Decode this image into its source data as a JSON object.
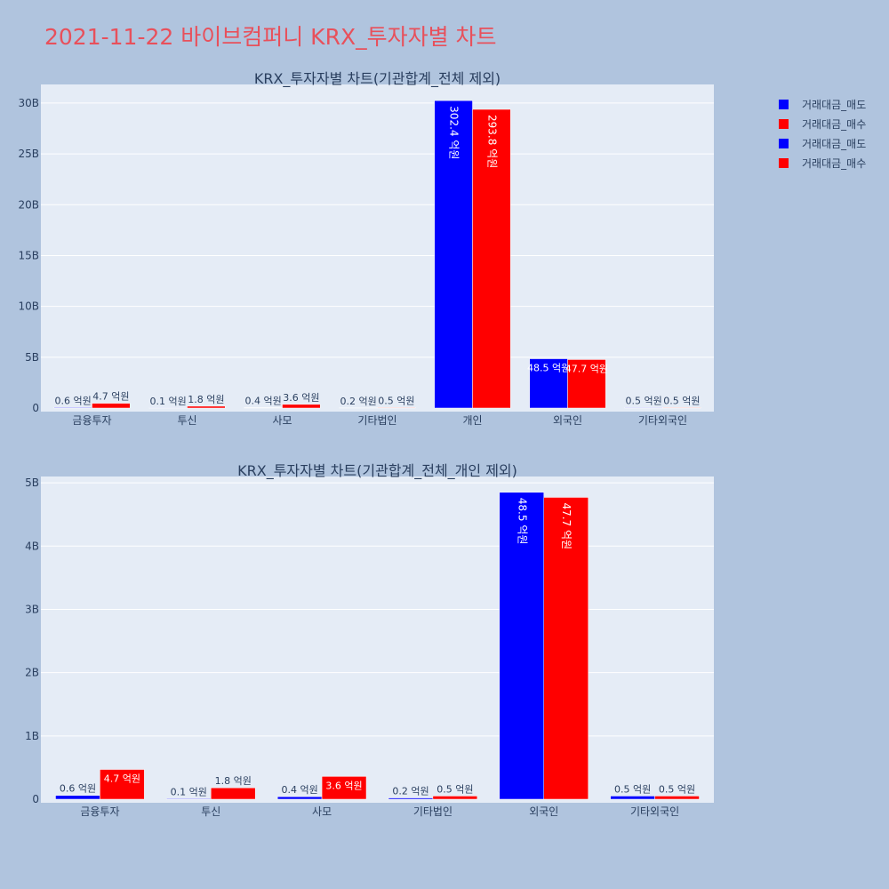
{
  "page": {
    "title": "2021-11-22 바이브컴퍼니 KRX_투자자별 차트"
  },
  "colors": {
    "background": "#b0c4de",
    "plot_bg": "#e5ecf6",
    "sell": "#0000ff",
    "buy": "#ff0000",
    "title": "#e8505b",
    "text": "#2a3f5f"
  },
  "legend": [
    {
      "label": "거래대금_매도",
      "color": "#0000ff"
    },
    {
      "label": "거래대금_매수",
      "color": "#ff0000"
    },
    {
      "label": "거래대금_매도",
      "color": "#0000ff"
    },
    {
      "label": "거래대금_매수",
      "color": "#ff0000"
    }
  ],
  "chart_data": [
    {
      "type": "bar",
      "title": "KRX_투자자별 차트(기관합계_전체 제외)",
      "categories": [
        "금융투자",
        "투신",
        "사모",
        "기타법인",
        "개인",
        "외국인",
        "기타외국인"
      ],
      "series": [
        {
          "name": "거래대금_매도",
          "color": "#0000ff",
          "values": [
            0.06,
            0.01,
            0.04,
            0.02,
            30.24,
            4.85,
            0.05
          ],
          "labels": [
            "0.6 억원",
            "0.1 억원",
            "0.4 억원",
            "0.2 억원",
            "302.4 억원",
            "48.5 억원",
            "0.5 억원"
          ]
        },
        {
          "name": "거래대금_매수",
          "color": "#ff0000",
          "values": [
            0.47,
            0.18,
            0.36,
            0.05,
            29.38,
            4.77,
            0.05
          ],
          "labels": [
            "4.7 억원",
            "1.8 억원",
            "3.6 억원",
            "0.5 억원",
            "293.8 억원",
            "47.7 억원",
            "0.5 억원"
          ]
        }
      ],
      "yticks": [
        0,
        5,
        10,
        15,
        20,
        25,
        30
      ],
      "ytick_labels": [
        "0",
        "5B",
        "10B",
        "15B",
        "20B",
        "25B",
        "30B"
      ],
      "ylim": [
        0,
        31.83
      ]
    },
    {
      "type": "bar",
      "title": "KRX_투자자별 차트(기관합계_전체_개인 제외)",
      "categories": [
        "금융투자",
        "투신",
        "사모",
        "기타법인",
        "외국인",
        "기타외국인"
      ],
      "series": [
        {
          "name": "거래대금_매도",
          "color": "#0000ff",
          "values": [
            0.06,
            0.01,
            0.04,
            0.02,
            4.85,
            0.05
          ],
          "labels": [
            "0.6 억원",
            "0.1 억원",
            "0.4 억원",
            "0.2 억원",
            "48.5 억원",
            "0.5 억원"
          ]
        },
        {
          "name": "거래대금_매수",
          "color": "#ff0000",
          "values": [
            0.47,
            0.18,
            0.36,
            0.05,
            4.77,
            0.05
          ],
          "labels": [
            "4.7 억원",
            "1.8 억원",
            "3.6 억원",
            "0.5 억원",
            "47.7 억원",
            "0.5 억원"
          ]
        }
      ],
      "yticks": [
        0,
        1,
        2,
        3,
        4,
        5
      ],
      "ytick_labels": [
        "0",
        "1B",
        "2B",
        "3B",
        "4B",
        "5B"
      ],
      "ylim": [
        0,
        5.1
      ]
    }
  ]
}
